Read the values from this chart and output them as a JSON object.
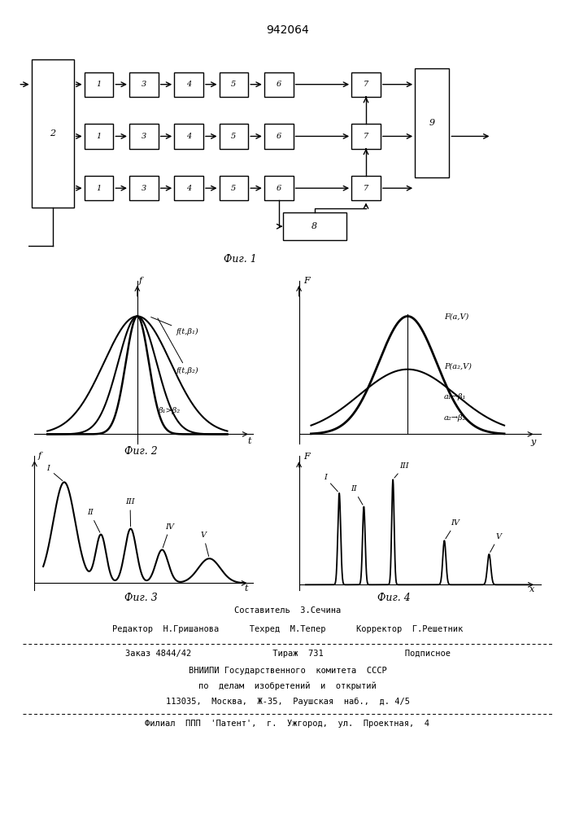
{
  "title": "942064",
  "bg_color": "#ffffff",
  "fig1_caption": "Фиг. 1",
  "fig2_caption": "Фиг. 2",
  "fig3_caption": "Фиг. 3",
  "fig4_caption": "Фиг. 4",
  "footer_lines": [
    "Составитель  З.Сечина",
    "Редактор  Н.Гришанова      Техред  М.Тепер      Корректор  Г.Решетник",
    "Заказ 4844/42                Тираж  731                Подписное",
    "ВНИИПИ Государственного  комитета  СССР",
    "по  делам  изобретений  и  открытий",
    "113035,  Москва,  Ж-35,  Раушская  наб.,  д. 4/5",
    "Филиал  ППП  'Патент',  г.  Ужгород,  ул.  Проектная,  4"
  ]
}
